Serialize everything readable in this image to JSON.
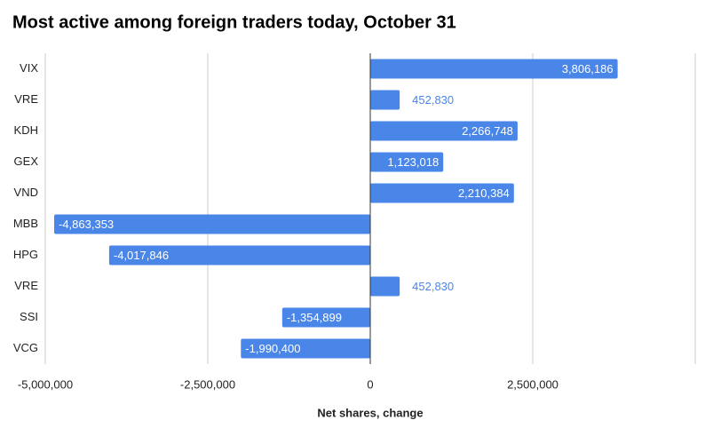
{
  "chart_data": {
    "type": "bar",
    "orientation": "horizontal",
    "title": "Most active among foreign traders today, October 31",
    "x_label": "Net shares, change",
    "categories": [
      "VIX",
      "VRE",
      "KDH",
      "GEX",
      "VND",
      "MBB",
      "HPG",
      "VRE",
      "SSI",
      "VCG"
    ],
    "values": [
      3806186,
      452830,
      2266748,
      1123018,
      2210384,
      -4863353,
      -4017846,
      452830,
      -1354899,
      -1990400
    ],
    "value_labels": [
      "3,806,186",
      "452,830",
      "2,266,748",
      "1,123,018",
      "2,210,384",
      "-4,863,353",
      "-4,017,846",
      "452,830",
      "-1,354,899",
      "-1,990,400"
    ],
    "color": "#4a86e8",
    "xlim": [
      -5000000,
      5000000
    ],
    "xticks": [
      {
        "value": -5000000,
        "label": "-5,000,000"
      },
      {
        "value": -2500000,
        "label": "-2,500,000"
      },
      0,
      {
        "value": 2500000,
        "label": "2,500,000"
      }
    ],
    "grid": true
  }
}
